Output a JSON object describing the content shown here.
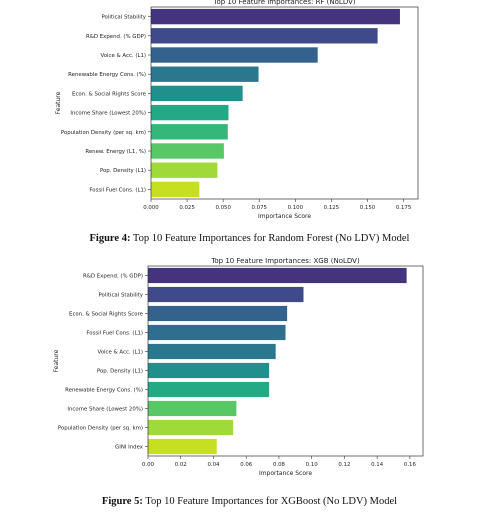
{
  "chart_data": [
    {
      "type": "bar",
      "orientation": "horizontal",
      "title": "Top 10 Feature Importances: RF (NoLDV)",
      "xlabel": "Importance Score",
      "ylabel": "Feature",
      "categories": [
        "Political Stability",
        "R&D Expend. (% GDP)",
        "Voice & Acc. (L1)",
        "Renewable Energy Cons. (%)",
        "Econ. & Social Rights Score",
        "Income Share (Lowest 20%)",
        "Population Density (per sq. km)",
        "Renew. Energy (L1, %)",
        "Pop. Density (L1)",
        "Fossil Fuel Cons. (L1)"
      ],
      "values": [
        0.1725,
        0.157,
        0.1155,
        0.0745,
        0.0635,
        0.0537,
        0.0532,
        0.0505,
        0.046,
        0.0335
      ],
      "xlim": [
        0,
        0.185
      ],
      "xticks": [
        "0.000",
        "0.025",
        "0.050",
        "0.075",
        "0.100",
        "0.125",
        "0.150",
        "0.175"
      ],
      "tickvals": [
        0,
        0.025,
        0.05,
        0.075,
        0.1,
        0.125,
        0.15,
        0.175
      ],
      "colors": [
        "#46337e",
        "#3e4a89",
        "#33638d",
        "#29788e",
        "#21908d",
        "#23a983",
        "#35b779",
        "#58c765",
        "#9fda3a",
        "#c6e021"
      ]
    },
    {
      "type": "bar",
      "orientation": "horizontal",
      "title": "Top 10 Feature Importances: XGB (NoLDV)",
      "xlabel": "Importance Score",
      "ylabel": "Feature",
      "categories": [
        "R&D Expend. (% GDP)",
        "Political Stability",
        "Econ. & Social Rights Score",
        "Fossil Fuel Cons. (L1)",
        "Voice & Acc. (L1)",
        "Pop. Density (L1)",
        "Renewable Energy Cons. (%)",
        "Income Share (Lowest 20%)",
        "Population Density (per sq. km)",
        "GINI Index"
      ],
      "values": [
        0.158,
        0.095,
        0.085,
        0.084,
        0.078,
        0.074,
        0.074,
        0.054,
        0.052,
        0.042
      ],
      "xlim": [
        0,
        0.168
      ],
      "xticks": [
        "0.00",
        "0.02",
        "0.04",
        "0.06",
        "0.08",
        "0.10",
        "0.12",
        "0.14",
        "0.16"
      ],
      "tickvals": [
        0,
        0.02,
        0.04,
        0.06,
        0.08,
        0.1,
        0.12,
        0.14,
        0.16
      ],
      "colors": [
        "#46337e",
        "#3e4a89",
        "#33638d",
        "#2e6e8e",
        "#29788e",
        "#21908d",
        "#23a983",
        "#58c765",
        "#9fda3a",
        "#c6e021"
      ]
    }
  ],
  "captions": [
    {
      "label": "Figure 4:",
      "text": " Top 10 Feature Importances for Random Forest (No LDV) Model"
    },
    {
      "label": "Figure 5:",
      "text": " Top 10 Feature Importances for XGBoost (No LDV) Model"
    }
  ]
}
